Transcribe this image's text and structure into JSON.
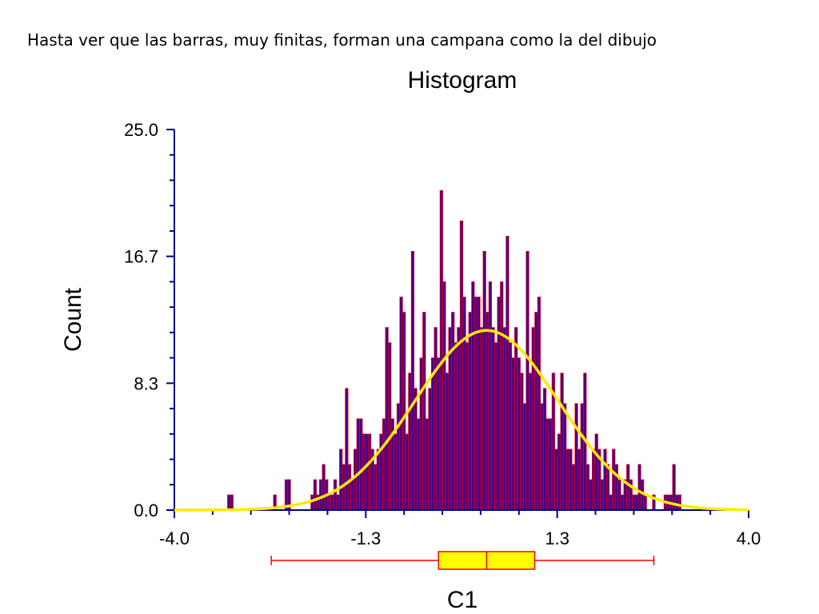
{
  "caption": "Hasta ver que las barras, muy finitas, forman una campana como la del dibujo",
  "colors": {
    "bar_fill": "#4b0082",
    "bar_stroke": "#ff0000",
    "axis": "#00008b",
    "curve": "#ffea00",
    "box_fill": "#ffff00",
    "box_stroke": "#ff0000"
  },
  "chart_data": {
    "type": "bar",
    "title": "Histogram",
    "xlabel": "C1",
    "ylabel": "Count",
    "xlim": [
      -4.0,
      4.0
    ],
    "ylim": [
      0,
      25.0
    ],
    "xticks": [
      "-4.0",
      "-1.3",
      "1.3",
      "4.0"
    ],
    "yticks": [
      "0.0",
      "8.3",
      "16.7",
      "25.0"
    ],
    "bin_width": 0.04,
    "bins": [
      [
        -3.26,
        1
      ],
      [
        -3.22,
        1
      ],
      [
        -2.62,
        1
      ],
      [
        -2.46,
        2
      ],
      [
        -2.42,
        2
      ],
      [
        -2.1,
        1
      ],
      [
        -2.06,
        2
      ],
      [
        -2.02,
        1
      ],
      [
        -1.98,
        2
      ],
      [
        -1.94,
        3
      ],
      [
        -1.9,
        2
      ],
      [
        -1.86,
        1
      ],
      [
        -1.82,
        1
      ],
      [
        -1.78,
        2
      ],
      [
        -1.74,
        1
      ],
      [
        -1.7,
        4
      ],
      [
        -1.66,
        3
      ],
      [
        -1.62,
        8
      ],
      [
        -1.58,
        3
      ],
      [
        -1.54,
        2
      ],
      [
        -1.5,
        4
      ],
      [
        -1.46,
        6
      ],
      [
        -1.42,
        6
      ],
      [
        -1.38,
        5
      ],
      [
        -1.34,
        5
      ],
      [
        -1.3,
        5
      ],
      [
        -1.26,
        4
      ],
      [
        -1.22,
        3
      ],
      [
        -1.18,
        4
      ],
      [
        -1.14,
        5
      ],
      [
        -1.1,
        6
      ],
      [
        -1.06,
        12
      ],
      [
        -1.02,
        11
      ],
      [
        -0.98,
        6
      ],
      [
        -0.94,
        5
      ],
      [
        -0.9,
        7
      ],
      [
        -0.86,
        14
      ],
      [
        -0.82,
        13
      ],
      [
        -0.78,
        5
      ],
      [
        -0.74,
        9
      ],
      [
        -0.7,
        17
      ],
      [
        -0.66,
        8
      ],
      [
        -0.62,
        6
      ],
      [
        -0.58,
        10
      ],
      [
        -0.54,
        13
      ],
      [
        -0.5,
        6
      ],
      [
        -0.46,
        8
      ],
      [
        -0.42,
        10
      ],
      [
        -0.38,
        12
      ],
      [
        -0.34,
        10
      ],
      [
        -0.3,
        21
      ],
      [
        -0.26,
        15
      ],
      [
        -0.22,
        9
      ],
      [
        -0.18,
        12
      ],
      [
        -0.14,
        13
      ],
      [
        -0.1,
        11
      ],
      [
        -0.06,
        12
      ],
      [
        -0.02,
        19
      ],
      [
        0.02,
        14
      ],
      [
        0.06,
        11
      ],
      [
        0.1,
        13
      ],
      [
        0.14,
        15
      ],
      [
        0.18,
        14
      ],
      [
        0.22,
        14
      ],
      [
        0.26,
        12
      ],
      [
        0.3,
        17
      ],
      [
        0.34,
        13
      ],
      [
        0.38,
        15
      ],
      [
        0.42,
        12
      ],
      [
        0.46,
        11
      ],
      [
        0.5,
        14
      ],
      [
        0.54,
        15
      ],
      [
        0.58,
        12
      ],
      [
        0.62,
        18
      ],
      [
        0.66,
        11
      ],
      [
        0.7,
        10
      ],
      [
        0.74,
        12
      ],
      [
        0.78,
        10
      ],
      [
        0.82,
        9
      ],
      [
        0.86,
        7
      ],
      [
        0.9,
        17
      ],
      [
        0.94,
        9
      ],
      [
        0.98,
        12
      ],
      [
        1.02,
        13
      ],
      [
        1.06,
        14
      ],
      [
        1.1,
        7
      ],
      [
        1.14,
        8
      ],
      [
        1.18,
        6
      ],
      [
        1.22,
        6
      ],
      [
        1.26,
        9
      ],
      [
        1.3,
        4
      ],
      [
        1.34,
        5
      ],
      [
        1.38,
        9
      ],
      [
        1.42,
        7
      ],
      [
        1.46,
        4
      ],
      [
        1.5,
        4
      ],
      [
        1.54,
        3
      ],
      [
        1.58,
        7
      ],
      [
        1.62,
        4
      ],
      [
        1.66,
        7
      ],
      [
        1.7,
        9
      ],
      [
        1.74,
        3
      ],
      [
        1.78,
        2
      ],
      [
        1.82,
        4
      ],
      [
        1.86,
        5
      ],
      [
        1.9,
        4
      ],
      [
        1.94,
        2
      ],
      [
        1.98,
        4
      ],
      [
        2.02,
        3
      ],
      [
        2.06,
        1
      ],
      [
        2.1,
        4
      ],
      [
        2.14,
        3
      ],
      [
        2.18,
        2
      ],
      [
        2.22,
        1
      ],
      [
        2.26,
        2
      ],
      [
        2.3,
        3
      ],
      [
        2.34,
        2
      ],
      [
        2.38,
        1
      ],
      [
        2.42,
        1
      ],
      [
        2.46,
        3
      ],
      [
        2.5,
        2
      ],
      [
        2.54,
        1
      ],
      [
        2.66,
        1
      ],
      [
        2.82,
        1
      ],
      [
        2.86,
        1
      ],
      [
        2.9,
        1
      ],
      [
        2.94,
        3
      ],
      [
        2.98,
        1
      ],
      [
        3.02,
        1
      ]
    ],
    "normal_curve": {
      "mean": 0.35,
      "sd": 1.0,
      "peak": 11.8
    },
    "boxplot": {
      "whisker_low": -2.65,
      "q1": -0.32,
      "median": 0.35,
      "q3": 1.02,
      "whisker_high": 2.68
    }
  }
}
